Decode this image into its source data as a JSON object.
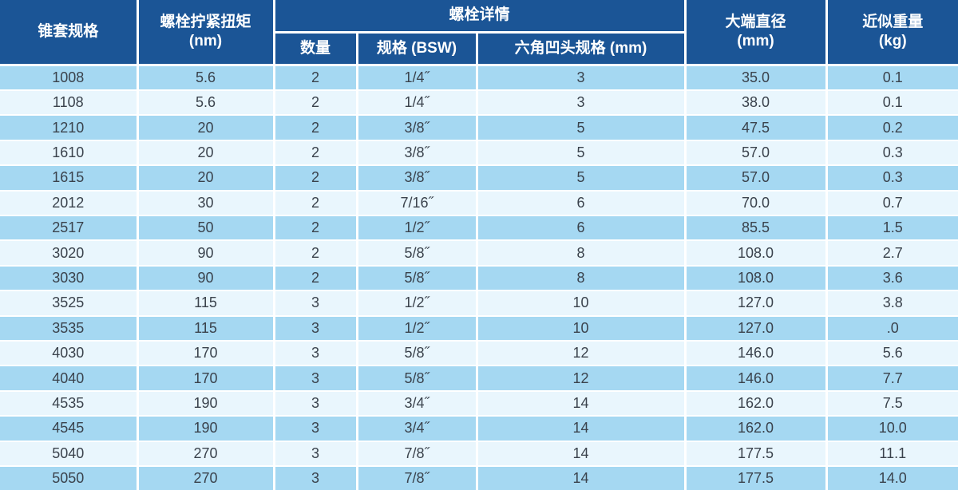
{
  "colors": {
    "header_bg": "#1b5596",
    "header_text": "#ffffff",
    "row_odd_bg": "#a5d8f2",
    "row_even_bg": "#e9f6fd",
    "body_text": "#3a424c",
    "divider": "#ffffff"
  },
  "chart_data": {
    "type": "table",
    "header": {
      "taper_spec": "锥套规格",
      "torque_label": "螺栓拧紧扭矩",
      "torque_unit": "(nm)",
      "bolt_details": "螺栓详情",
      "bolt_qty": "数量",
      "bolt_size": "规格 (BSW)",
      "hex_socket": "六角凹头规格 (mm)",
      "diameter_label": "大端直径",
      "diameter_unit": "(mm)",
      "weight_label": "近似重量",
      "weight_unit": "(kg)"
    },
    "column_ids": [
      "taper-spec",
      "torque-nm",
      "bolt-qty",
      "bolt-size-bsw",
      "hex-socket-mm",
      "big-end-diameter-mm",
      "approx-weight-kg"
    ],
    "rows": [
      [
        "1008",
        "5.6",
        "2",
        "1/4˝",
        "3",
        "35.0",
        "0.1"
      ],
      [
        "1108",
        "5.6",
        "2",
        "1/4˝",
        "3",
        "38.0",
        "0.1"
      ],
      [
        "1210",
        "20",
        "2",
        "3/8˝",
        "5",
        "47.5",
        "0.2"
      ],
      [
        "1610",
        "20",
        "2",
        "3/8˝",
        "5",
        "57.0",
        "0.3"
      ],
      [
        "1615",
        "20",
        "2",
        "3/8˝",
        "5",
        "57.0",
        "0.3"
      ],
      [
        "2012",
        "30",
        "2",
        "7/16˝",
        "6",
        "70.0",
        "0.7"
      ],
      [
        "2517",
        "50",
        "2",
        "1/2˝",
        "6",
        "85.5",
        "1.5"
      ],
      [
        "3020",
        "90",
        "2",
        "5/8˝",
        "8",
        "108.0",
        "2.7"
      ],
      [
        "3030",
        "90",
        "2",
        "5/8˝",
        "8",
        "108.0",
        "3.6"
      ],
      [
        "3525",
        "115",
        "3",
        "1/2˝",
        "10",
        "127.0",
        "3.8"
      ],
      [
        "3535",
        "115",
        "3",
        "1/2˝",
        "10",
        "127.0",
        ".0"
      ],
      [
        "4030",
        "170",
        "3",
        "5/8˝",
        "12",
        "146.0",
        "5.6"
      ],
      [
        "4040",
        "170",
        "3",
        "5/8˝",
        "12",
        "146.0",
        "7.7"
      ],
      [
        "4535",
        "190",
        "3",
        "3/4˝",
        "14",
        "162.0",
        "7.5"
      ],
      [
        "4545",
        "190",
        "3",
        "3/4˝",
        "14",
        "162.0",
        "10.0"
      ],
      [
        "5040",
        "270",
        "3",
        "7/8˝",
        "14",
        "177.5",
        "11.1"
      ],
      [
        "5050",
        "270",
        "3",
        "7/8˝",
        "14",
        "177.5",
        "14.0"
      ]
    ]
  }
}
